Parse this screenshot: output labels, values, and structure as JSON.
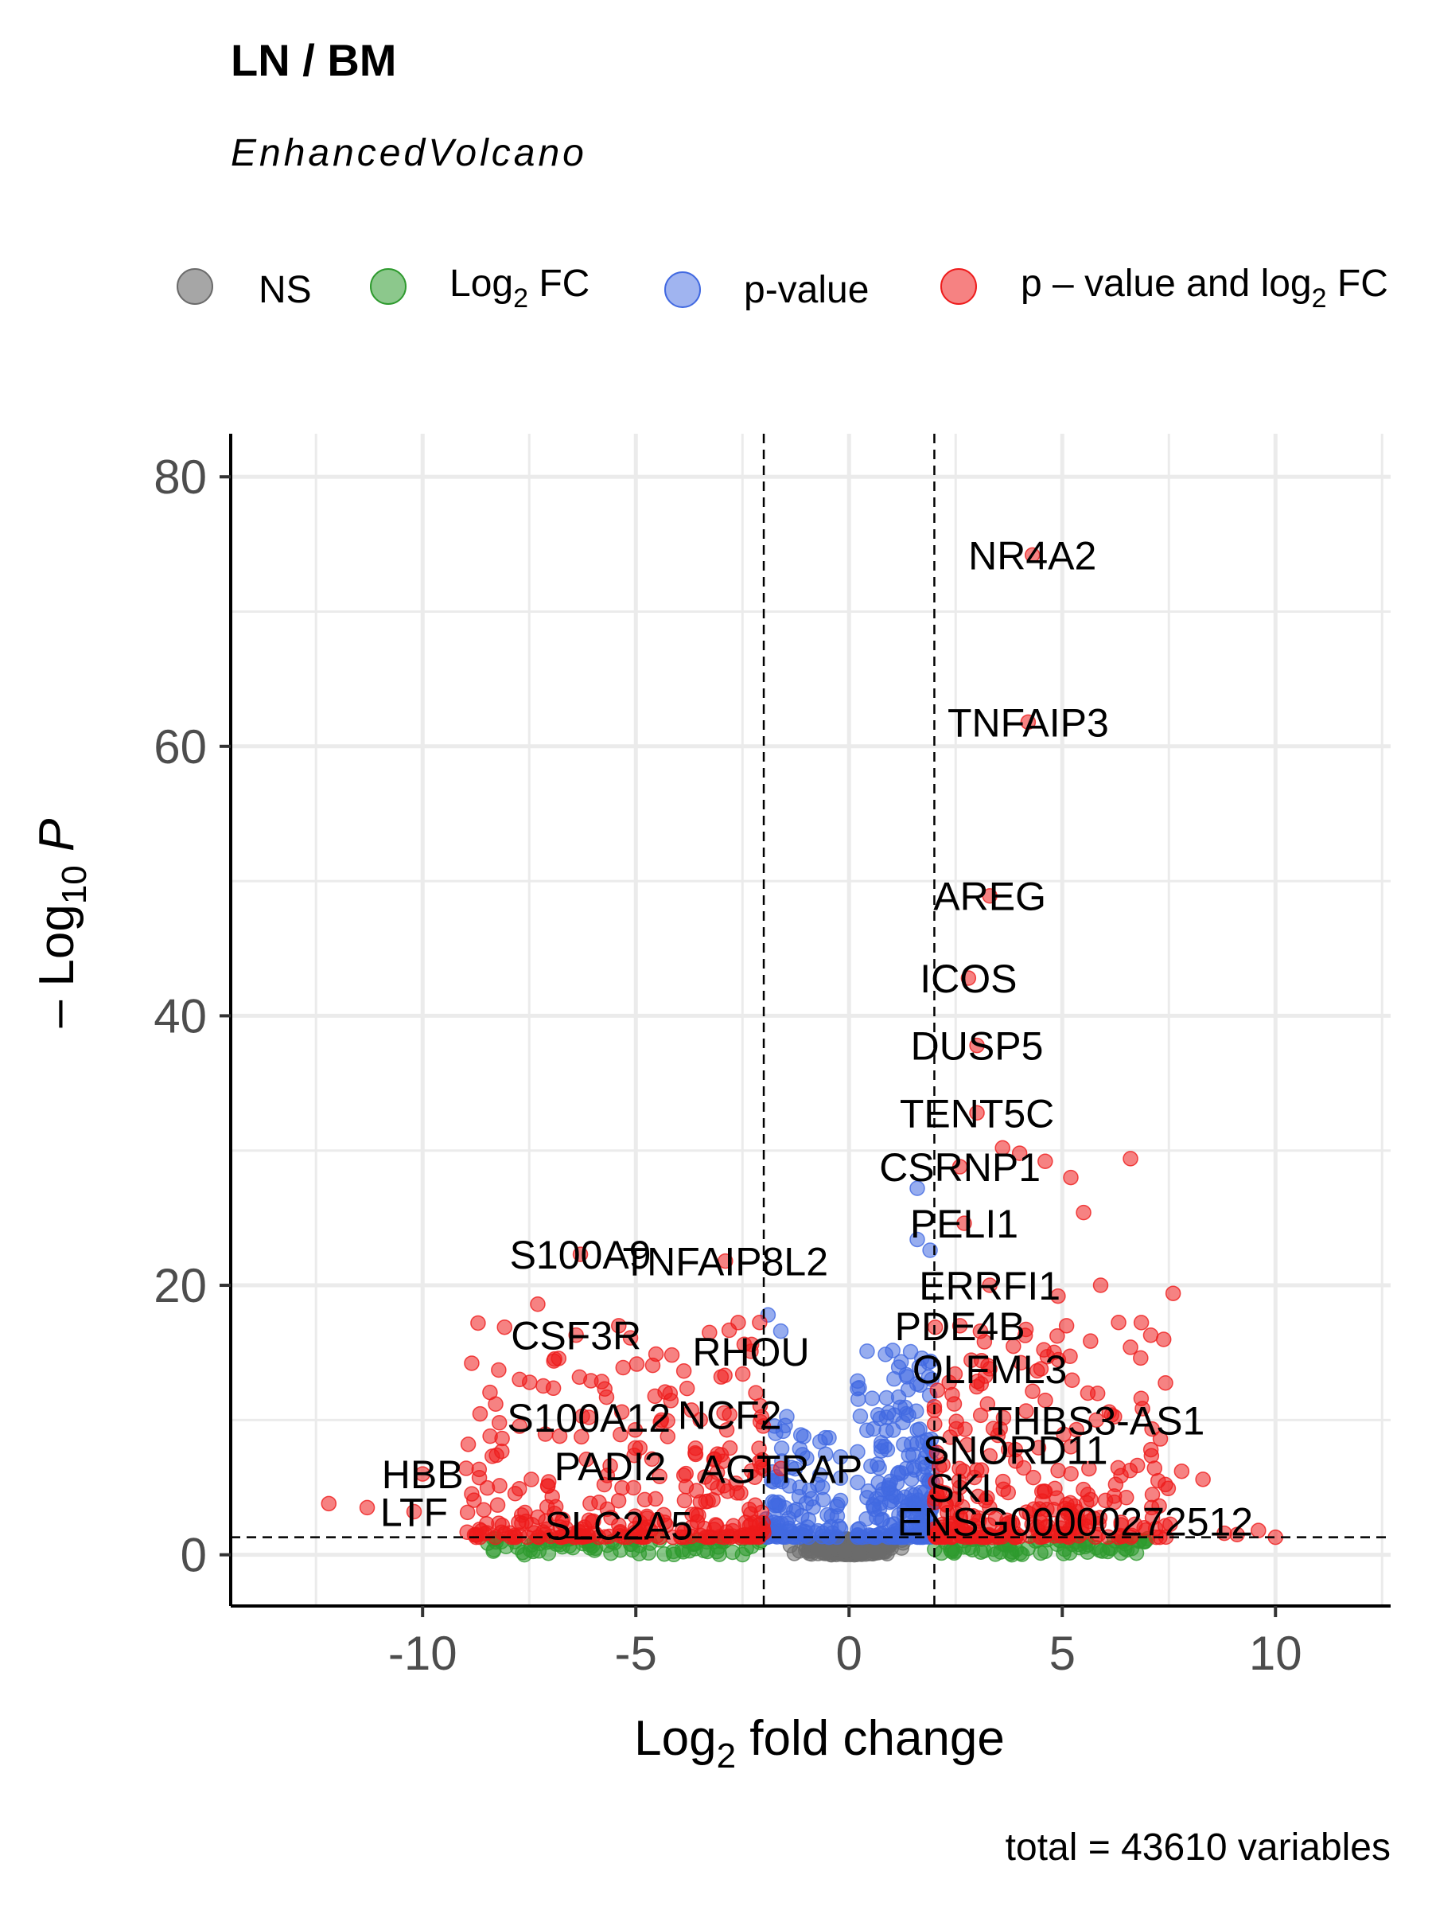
{
  "chart_data": {
    "type": "scatter",
    "title": "LN / BM",
    "subtitle": "EnhancedVolcano",
    "xlabel": {
      "main": "Log",
      "sub": "2",
      "rest": " fold change"
    },
    "ylabel": {
      "pre": "– Log",
      "sub": "10",
      "italic": " P"
    },
    "caption": "total = 43610 variables",
    "xlim": [
      -14.5,
      12.7
    ],
    "ylim": [
      -3.8,
      83.2
    ],
    "x_ticks": [
      -10,
      -5,
      0,
      5,
      10
    ],
    "x_tick_labels": [
      "-10",
      "-5",
      "0",
      "5",
      "10"
    ],
    "y_ticks": [
      0,
      20,
      40,
      60,
      80
    ],
    "y_tick_labels": [
      "0",
      "20",
      "40",
      "60",
      "80"
    ],
    "fc_cutoff": 2,
    "p_cutoff_neglog10": 1.3,
    "grid": true,
    "legend_position": "top",
    "legend": [
      {
        "key": "ns",
        "label": "NS",
        "color": "#6b6b6b"
      },
      {
        "key": "fc",
        "label": {
          "main": "Log",
          "sub": "2",
          "rest": " FC"
        },
        "color": "#2e9a2e"
      },
      {
        "key": "p",
        "label": "p-value",
        "color": "#4169e1"
      },
      {
        "key": "both",
        "label": {
          "main": "p – value and log",
          "sub": "2",
          "rest": " FC"
        },
        "color": "#ee1c1c"
      }
    ],
    "labeled_points": [
      {
        "gene": "NR4A2",
        "x": 4.3,
        "y": 74.2
      },
      {
        "gene": "TNFAIP3",
        "x": 4.2,
        "y": 61.8
      },
      {
        "gene": "AREG",
        "x": 3.3,
        "y": 48.9
      },
      {
        "gene": "ICOS",
        "x": 2.8,
        "y": 42.8
      },
      {
        "gene": "DUSP5",
        "x": 3.0,
        "y": 37.8
      },
      {
        "gene": "TENT5C",
        "x": 3.0,
        "y": 32.8
      },
      {
        "gene": "CSRNP1",
        "x": 2.6,
        "y": 28.8
      },
      {
        "gene": "PELI1",
        "x": 2.7,
        "y": 24.6
      },
      {
        "gene": "S100A9",
        "x": -6.3,
        "y": 22.3
      },
      {
        "gene": "TNFAIP8L2",
        "x": -2.9,
        "y": 21.8
      },
      {
        "gene": "ERRFI1",
        "x": 3.3,
        "y": 20.0
      },
      {
        "gene": "PDE4B",
        "x": 2.6,
        "y": 17.0
      },
      {
        "gene": "CSF3R",
        "x": -6.4,
        "y": 16.3
      },
      {
        "gene": "RHOU",
        "x": -2.3,
        "y": 15.1
      },
      {
        "gene": "OLFML3",
        "x": 3.3,
        "y": 13.8
      },
      {
        "gene": "S100A12",
        "x": -6.1,
        "y": 10.2
      },
      {
        "gene": "NCF2",
        "x": -2.8,
        "y": 10.4
      },
      {
        "gene": "THBS3-AS1",
        "x": 5.8,
        "y": 10.0
      },
      {
        "gene": "SNORD11",
        "x": 3.9,
        "y": 7.8
      },
      {
        "gene": "PADI2",
        "x": -5.6,
        "y": 6.6
      },
      {
        "gene": "AGTRAP",
        "x": -1.6,
        "y": 6.4
      },
      {
        "gene": "HBB",
        "x": -10.0,
        "y": 6.0
      },
      {
        "gene": "SKI",
        "x": 2.6,
        "y": 5.0
      },
      {
        "gene": "LTF",
        "x": -10.2,
        "y": 3.2
      },
      {
        "gene": "SLC2A5",
        "x": -5.4,
        "y": 2.2
      },
      {
        "gene": "ENSG00000272512",
        "x": 5.3,
        "y": 2.5
      }
    ]
  }
}
